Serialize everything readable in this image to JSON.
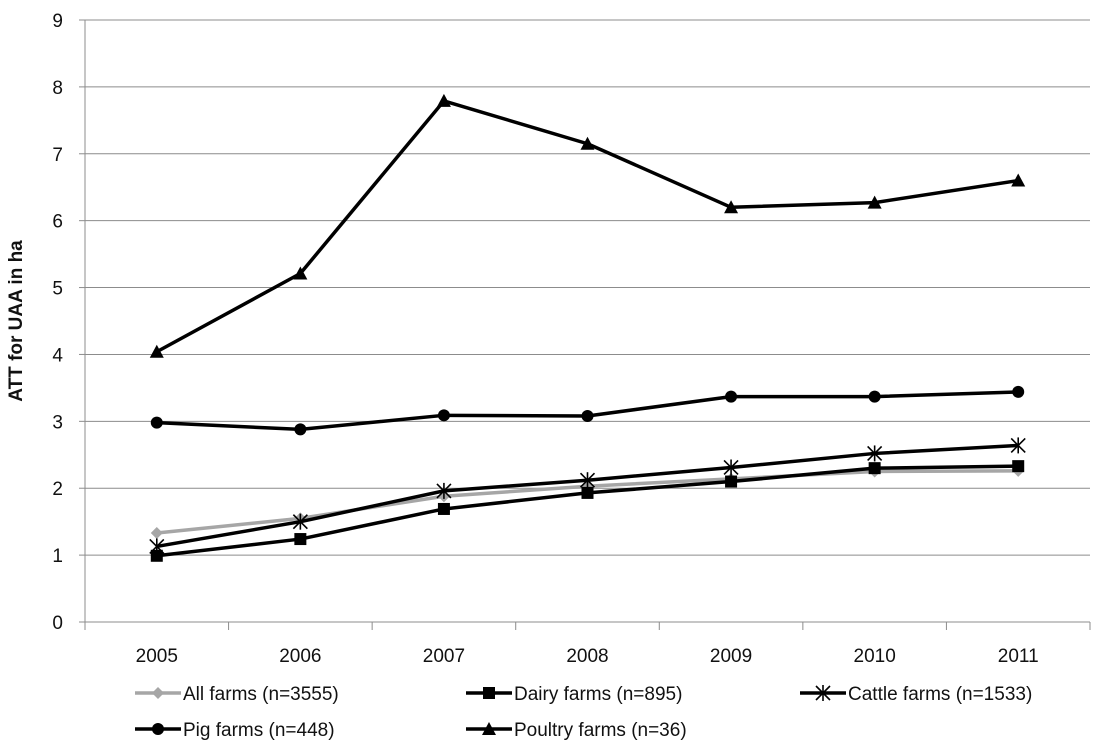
{
  "chart_data": {
    "type": "line",
    "title": "",
    "xlabel": "",
    "ylabel": "ATT for UAA in ha",
    "categories": [
      "2005",
      "2006",
      "2007",
      "2008",
      "2009",
      "2010",
      "2011"
    ],
    "ylim": [
      0,
      9
    ],
    "yticks": [
      0,
      1,
      2,
      3,
      4,
      5,
      6,
      7,
      8,
      9
    ],
    "grid": "horizontal",
    "legend_position": "bottom",
    "series": [
      {
        "name": "All farms (n=3555)",
        "values": [
          1.33,
          1.55,
          1.88,
          2.03,
          2.14,
          2.25,
          2.26
        ],
        "color": "#a6a6a6",
        "marker": "diamond"
      },
      {
        "name": "Dairy farms (n=895)",
        "values": [
          0.99,
          1.24,
          1.69,
          1.93,
          2.1,
          2.3,
          2.33
        ],
        "color": "#000000",
        "marker": "square"
      },
      {
        "name": "Cattle farms (n=1533)",
        "values": [
          1.13,
          1.5,
          1.96,
          2.12,
          2.31,
          2.52,
          2.64
        ],
        "color": "#000000",
        "marker": "star"
      },
      {
        "name": "Pig farms (n=448)",
        "values": [
          2.98,
          2.88,
          3.09,
          3.08,
          3.37,
          3.37,
          3.44
        ],
        "color": "#000000",
        "marker": "circle"
      },
      {
        "name": "Poultry farms (n=36)",
        "values": [
          4.04,
          5.21,
          7.79,
          7.15,
          6.2,
          6.27,
          6.6
        ],
        "color": "#000000",
        "marker": "triangle"
      }
    ]
  }
}
